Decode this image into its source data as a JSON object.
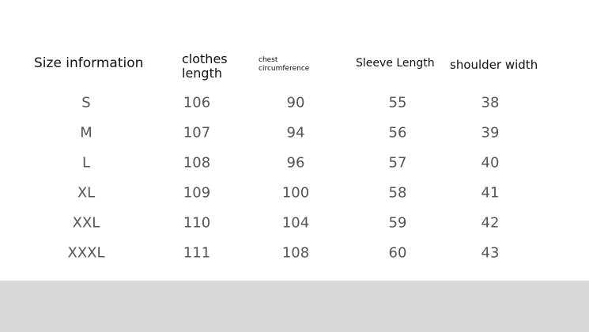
{
  "headers": {
    "size": "Size information",
    "clothes_length_1": "clothes",
    "clothes_length_2": "length",
    "chest_1": "chest",
    "chest_2": "circumference",
    "sleeve": "Sleeve Length",
    "shoulder": "shoulder width"
  },
  "rows": [
    [
      "S",
      "106",
      "90",
      "55",
      "38"
    ],
    [
      "M",
      "107",
      "94",
      "56",
      "39"
    ],
    [
      "L",
      "108",
      "96",
      "57",
      "40"
    ],
    [
      "XL",
      "109",
      "100",
      "58",
      "41"
    ],
    [
      "XXL",
      "110",
      "104",
      "59",
      "42"
    ],
    [
      "XXXL",
      "111",
      "108",
      "60",
      "43"
    ]
  ]
}
